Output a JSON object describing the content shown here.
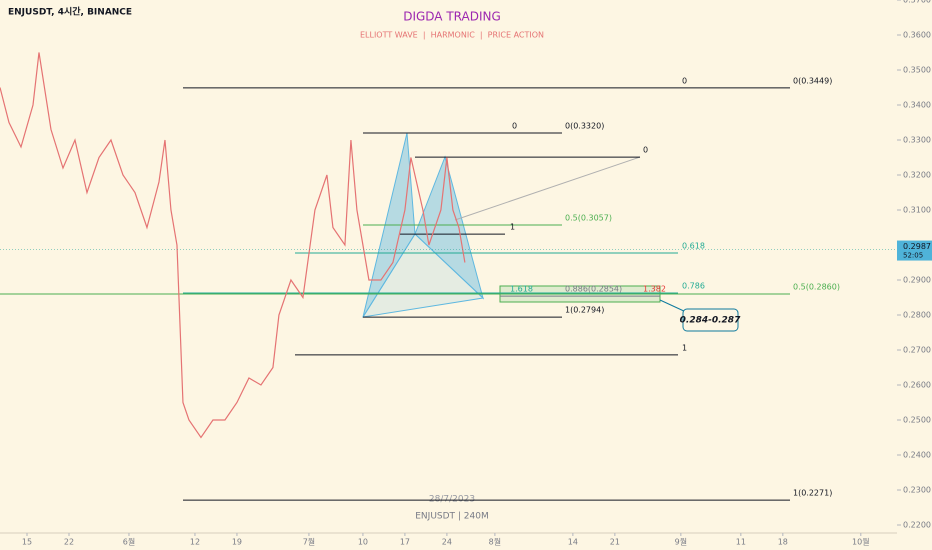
{
  "header": {
    "symbol": "ENJUSDT, 4시간, BINANCE",
    "brand": "DIGDA TRADING",
    "tagline": "ELLIOTT WAVE  |  HARMONIC  |  PRICE ACTION",
    "footer_symbol": "ENJUSDT | 240M",
    "date": "28/7/2023"
  },
  "chart_data": {
    "type": "line",
    "x": [
      130.5,
      132,
      134,
      136,
      137,
      139,
      141,
      143,
      145,
      147,
      149,
      151,
      153,
      155,
      157,
      158,
      159,
      160,
      161,
      162,
      164,
      166,
      168,
      170,
      172,
      174,
      176,
      177,
      179,
      181,
      183,
      185,
      186,
      188,
      189,
      190,
      191,
      192,
      194,
      196,
      198,
      199,
      201,
      202,
      204,
      205,
      206,
      207,
      208
    ],
    "series": [
      {
        "color": "#e57373",
        "values": [
          0.345,
          0.335,
          0.328,
          0.34,
          0.355,
          0.333,
          0.322,
          0.33,
          0.315,
          0.325,
          0.33,
          0.32,
          0.315,
          0.305,
          0.318,
          0.33,
          0.31,
          0.3,
          0.255,
          0.25,
          0.245,
          0.25,
          0.25,
          0.255,
          0.262,
          0.26,
          0.265,
          0.28,
          0.29,
          0.285,
          0.31,
          0.32,
          0.305,
          0.3,
          0.33,
          0.31,
          0.3,
          0.29,
          0.29,
          0.295,
          0.31,
          0.325,
          0.31,
          0.3,
          0.31,
          0.325,
          0.31,
          0.305,
          0.295
        ]
      }
    ],
    "xlim": [
      130.5,
      279.7
    ],
    "ylim": [
      0.218,
      0.37
    ],
    "xticks": [
      {
        "value": 135,
        "label": "15"
      },
      {
        "value": 142,
        "label": "22"
      },
      {
        "value": 152,
        "label": "6월"
      },
      {
        "value": 163,
        "label": "12"
      },
      {
        "value": 170,
        "label": "19"
      },
      {
        "value": 182,
        "label": "7월"
      },
      {
        "value": 191,
        "label": "10"
      },
      {
        "value": 198,
        "label": "17"
      },
      {
        "value": 205,
        "label": "24"
      },
      {
        "value": 213,
        "label": "8월"
      },
      {
        "value": 226,
        "label": "14"
      },
      {
        "value": 233,
        "label": "21"
      },
      {
        "value": 244,
        "label": "9월"
      },
      {
        "value": 254,
        "label": "11"
      },
      {
        "value": 261,
        "label": "18"
      },
      {
        "value": 274,
        "label": "10월"
      }
    ],
    "yticks": [
      {
        "value": 0.22,
        "label": "0.2200"
      },
      {
        "value": 0.23,
        "label": "0.2300"
      },
      {
        "value": 0.24,
        "label": "0.2400"
      },
      {
        "value": 0.25,
        "label": "0.2500"
      },
      {
        "value": 0.26,
        "label": "0.2600"
      },
      {
        "value": 0.27,
        "label": "0.2700"
      },
      {
        "value": 0.28,
        "label": "0.2800"
      },
      {
        "value": 0.29,
        "label": "0.2900"
      },
      {
        "value": 0.31,
        "label": "0.3100"
      },
      {
        "value": 0.32,
        "label": "0.3200"
      },
      {
        "value": 0.33,
        "label": "0.3300"
      },
      {
        "value": 0.34,
        "label": "0.3400"
      },
      {
        "value": 0.35,
        "label": "0.3500"
      },
      {
        "value": 0.36,
        "label": "0.3600"
      },
      {
        "value": 0.37,
        "label": "0.3700"
      }
    ],
    "last_price": {
      "value": 0.2987,
      "label": "0.2987"
    },
    "countdown": "52:05",
    "levels": [
      {
        "value": 0.3449,
        "color": "#131722",
        "texts": [
          "0",
          "0(0.3449)"
        ]
      },
      {
        "value": 0.332,
        "color": "#131722",
        "texts": [
          "0",
          "0(0.3320)"
        ]
      },
      {
        "value": 0.3251,
        "color": "#131722",
        "texts": [
          "0"
        ]
      },
      {
        "value": 0.3057,
        "color": "#4caf50",
        "texts": [
          "0.5(0.3057)"
        ]
      },
      {
        "value": 0.3031,
        "color": "#131722",
        "texts": [
          "1"
        ]
      },
      {
        "value": 0.2977,
        "color": "#22ab94",
        "texts": [
          "0.618"
        ]
      },
      {
        "value": 0.2863,
        "color": "#22ab94",
        "texts": [
          "0.786"
        ]
      },
      {
        "value": 0.286,
        "color": "#4caf50",
        "texts": [
          "0.5(0.2860)"
        ]
      },
      {
        "value": 0.2854,
        "color": "#787b86",
        "texts": [
          "1.618",
          "0.886(0.2854)",
          "1.382"
        ]
      },
      {
        "value": 0.2794,
        "color": "#131722",
        "texts": [
          "1(0.2794)"
        ]
      },
      {
        "value": 0.2686,
        "color": "#131722",
        "texts": [
          "1"
        ]
      },
      {
        "value": 0.2271,
        "color": "#131722",
        "texts": [
          "1(0.2271)"
        ]
      }
    ],
    "annotation": "0.284-0.287"
  }
}
